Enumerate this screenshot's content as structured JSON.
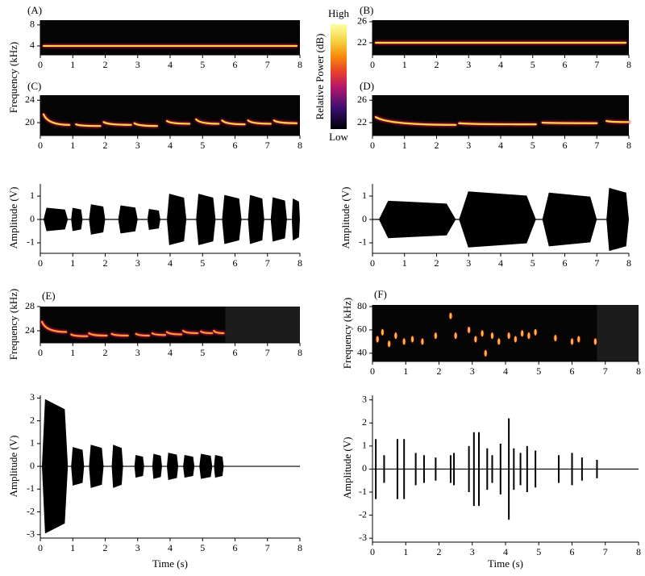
{
  "colorbar": {
    "title": "Relative Power (dB)",
    "high": "High",
    "low": "Low"
  },
  "chart_data": [
    {
      "type": "spectrogram",
      "label": "(A)",
      "ylabel": "Frequency (kHz)",
      "xlim": [
        0,
        8
      ],
      "xticks": [
        0,
        1,
        2,
        3,
        4,
        5,
        6,
        7,
        8
      ],
      "ylim": [
        2.3,
        8.9
      ],
      "yticks": [
        4,
        8
      ],
      "color": "#ffd84a",
      "segments": [
        [
          0.1,
          7.9,
          4,
          4
        ]
      ]
    },
    {
      "type": "spectrogram",
      "label": "(B)",
      "xlim": [
        0,
        8
      ],
      "xticks": [
        0,
        1,
        2,
        3,
        4,
        5,
        6,
        7,
        8
      ],
      "ylim": [
        19.7,
        26.3
      ],
      "yticks": [
        22,
        26
      ],
      "color": "#ffd84a",
      "segments": [
        [
          0.1,
          7.9,
          22,
          22
        ]
      ]
    },
    {
      "type": "spectrogram",
      "label": "(C)",
      "xlim": [
        0,
        8
      ],
      "xticks": [
        0,
        1,
        2,
        3,
        4,
        5,
        6,
        7,
        8
      ],
      "ylim": [
        17.7,
        24.9
      ],
      "yticks": [
        20,
        24
      ],
      "color": "#ffd84a",
      "segments": [
        [
          0.1,
          0.9,
          21.5,
          19.6
        ],
        [
          1.1,
          1.85,
          19.7,
          19.4
        ],
        [
          1.95,
          2.8,
          20.1,
          19.6
        ],
        [
          2.9,
          3.6,
          19.9,
          19.4
        ],
        [
          3.9,
          4.6,
          20.3,
          19.8
        ],
        [
          4.8,
          5.5,
          20.6,
          19.8
        ],
        [
          5.6,
          6.3,
          20.4,
          19.7
        ],
        [
          6.4,
          7.1,
          20.4,
          19.8
        ],
        [
          7.2,
          7.9,
          20.4,
          19.9
        ]
      ]
    },
    {
      "type": "spectrogram",
      "label": "(D)",
      "xlim": [
        0,
        8
      ],
      "xticks": [
        0,
        1,
        2,
        3,
        4,
        5,
        6,
        7,
        8
      ],
      "ylim": [
        19.7,
        26.9
      ],
      "yticks": [
        22,
        26
      ],
      "color": "#ffd84a",
      "segments": [
        [
          0.1,
          2.6,
          23,
          21.6
        ],
        [
          2.7,
          5.1,
          21.9,
          21.7
        ],
        [
          5.3,
          7.0,
          22.0,
          21.9
        ],
        [
          7.3,
          8.0,
          22.3,
          22.1
        ]
      ]
    },
    {
      "type": "waveform",
      "ylabel": "Amplitude (V)",
      "xlim": [
        0,
        8
      ],
      "xticks": [
        0,
        1,
        2,
        3,
        4,
        5,
        6,
        7,
        8
      ],
      "ylim": [
        -1.38,
        1.52
      ],
      "yticks": [
        1,
        0,
        -1
      ],
      "color": "#000000",
      "segments": [
        [
          0.1,
          0.85,
          0.5
        ],
        [
          0.95,
          1.3,
          0.5
        ],
        [
          1.5,
          2.0,
          0.65
        ],
        [
          2.4,
          3.0,
          0.6
        ],
        [
          3.3,
          3.7,
          0.45
        ],
        [
          3.9,
          4.5,
          1.1
        ],
        [
          4.8,
          5.4,
          1.1
        ],
        [
          5.6,
          6.2,
          1.05
        ],
        [
          6.4,
          6.9,
          1.05
        ],
        [
          7.1,
          7.6,
          0.95
        ],
        [
          7.75,
          8.0,
          0.9
        ]
      ]
    },
    {
      "type": "waveform",
      "ylabel": "Amplitude (V)",
      "xlim": [
        0,
        8
      ],
      "xticks": [
        0,
        1,
        2,
        3,
        4,
        5,
        6,
        7,
        8
      ],
      "ylim": [
        -1.38,
        1.52
      ],
      "yticks": [
        1,
        0,
        -1
      ],
      "color": "#000000",
      "segments": [
        [
          0.2,
          2.6,
          0.8
        ],
        [
          2.7,
          5.1,
          1.2
        ],
        [
          5.3,
          7.0,
          1.15
        ],
        [
          7.3,
          8.0,
          1.35
        ]
      ]
    },
    {
      "type": "spectrogram",
      "label": "(E)",
      "ylabel": "Frequency (kHz)",
      "xlim": [
        0,
        8
      ],
      "xticks": [
        0,
        1,
        2,
        3,
        4,
        5,
        6,
        7,
        8
      ],
      "ylim": [
        22,
        28
      ],
      "yticks": [
        28,
        24
      ],
      "color": "#ff9a3c",
      "record_end": 5.7,
      "segments": [
        [
          0.05,
          0.8,
          25.5,
          23.8
        ],
        [
          0.95,
          1.45,
          23.4,
          23.1
        ],
        [
          1.5,
          2.05,
          23.6,
          23.2
        ],
        [
          2.2,
          2.7,
          23.5,
          23.2
        ],
        [
          2.95,
          3.35,
          23.5,
          23.2
        ],
        [
          3.45,
          3.85,
          23.6,
          23.3
        ],
        [
          3.9,
          4.35,
          23.8,
          23.4
        ],
        [
          4.4,
          4.85,
          24.0,
          23.6
        ],
        [
          4.95,
          5.3,
          23.9,
          23.6
        ],
        [
          5.35,
          5.65,
          24.0,
          23.6
        ]
      ]
    },
    {
      "type": "spectrogram_points",
      "label": "(F)",
      "ylabel": "Frequency (kHz)",
      "xlim": [
        0,
        8
      ],
      "xticks": [
        0,
        1,
        2,
        3,
        4,
        5,
        6,
        7,
        8
      ],
      "ylim": [
        33,
        81.4
      ],
      "yticks": [
        80,
        60,
        40
      ],
      "color": "#ffb340",
      "record_end": 6.75,
      "points": [
        [
          0.15,
          52
        ],
        [
          0.3,
          58
        ],
        [
          0.5,
          48
        ],
        [
          0.7,
          55
        ],
        [
          0.95,
          50
        ],
        [
          1.2,
          52
        ],
        [
          1.5,
          50
        ],
        [
          1.9,
          55
        ],
        [
          2.35,
          72
        ],
        [
          2.5,
          55
        ],
        [
          2.9,
          60
        ],
        [
          3.1,
          52
        ],
        [
          3.3,
          57
        ],
        [
          3.4,
          40
        ],
        [
          3.6,
          55
        ],
        [
          3.8,
          50
        ],
        [
          4.1,
          55
        ],
        [
          4.3,
          52
        ],
        [
          4.5,
          57
        ],
        [
          4.7,
          55
        ],
        [
          4.9,
          58
        ],
        [
          5.5,
          53
        ],
        [
          6.0,
          50
        ],
        [
          6.2,
          52
        ],
        [
          6.7,
          50
        ]
      ]
    },
    {
      "type": "waveform",
      "ylabel": "Amplitude (V)",
      "xlabel": "Time (s)",
      "xlim": [
        0,
        8
      ],
      "xticks": [
        0,
        1,
        2,
        3,
        4,
        5,
        6,
        7,
        8
      ],
      "ylim": [
        -3.08,
        3.12
      ],
      "yticks": [
        3,
        2,
        1,
        0,
        -1,
        -2,
        -3
      ],
      "color": "#000000",
      "segments": [
        [
          0.05,
          0.85,
          2.95
        ],
        [
          0.95,
          1.35,
          0.85
        ],
        [
          1.5,
          1.95,
          0.95
        ],
        [
          2.2,
          2.55,
          0.95
        ],
        [
          2.9,
          3.2,
          0.5
        ],
        [
          3.45,
          3.75,
          0.55
        ],
        [
          3.9,
          4.25,
          0.6
        ],
        [
          4.4,
          4.75,
          0.5
        ],
        [
          4.9,
          5.3,
          0.55
        ],
        [
          5.35,
          5.65,
          0.5
        ]
      ]
    },
    {
      "type": "waveform_spikes",
      "ylabel": "Amplitude (V)",
      "xlabel": "Time (s)",
      "xlim": [
        0,
        8
      ],
      "xticks": [
        0,
        1,
        2,
        3,
        4,
        5,
        6,
        7,
        8
      ],
      "ylim": [
        -3.1,
        3.2
      ],
      "yticks": [
        3,
        2,
        1,
        0,
        -1,
        -2,
        -3
      ],
      "color": "#000000",
      "spikes": [
        [
          0.1,
          1.3
        ],
        [
          0.35,
          0.6
        ],
        [
          0.75,
          1.3
        ],
        [
          0.95,
          1.3
        ],
        [
          1.3,
          0.7
        ],
        [
          1.55,
          0.6
        ],
        [
          1.9,
          0.5
        ],
        [
          2.35,
          0.6
        ],
        [
          2.45,
          0.7
        ],
        [
          2.9,
          1.0
        ],
        [
          3.05,
          1.6
        ],
        [
          3.2,
          1.6
        ],
        [
          3.45,
          0.9
        ],
        [
          3.6,
          0.6
        ],
        [
          3.85,
          1.1
        ],
        [
          4.1,
          2.2
        ],
        [
          4.25,
          0.9
        ],
        [
          4.45,
          0.7
        ],
        [
          4.65,
          1.0
        ],
        [
          4.9,
          0.8
        ],
        [
          5.6,
          0.6
        ],
        [
          6.0,
          0.7
        ],
        [
          6.3,
          0.5
        ],
        [
          6.75,
          0.4
        ]
      ]
    }
  ]
}
